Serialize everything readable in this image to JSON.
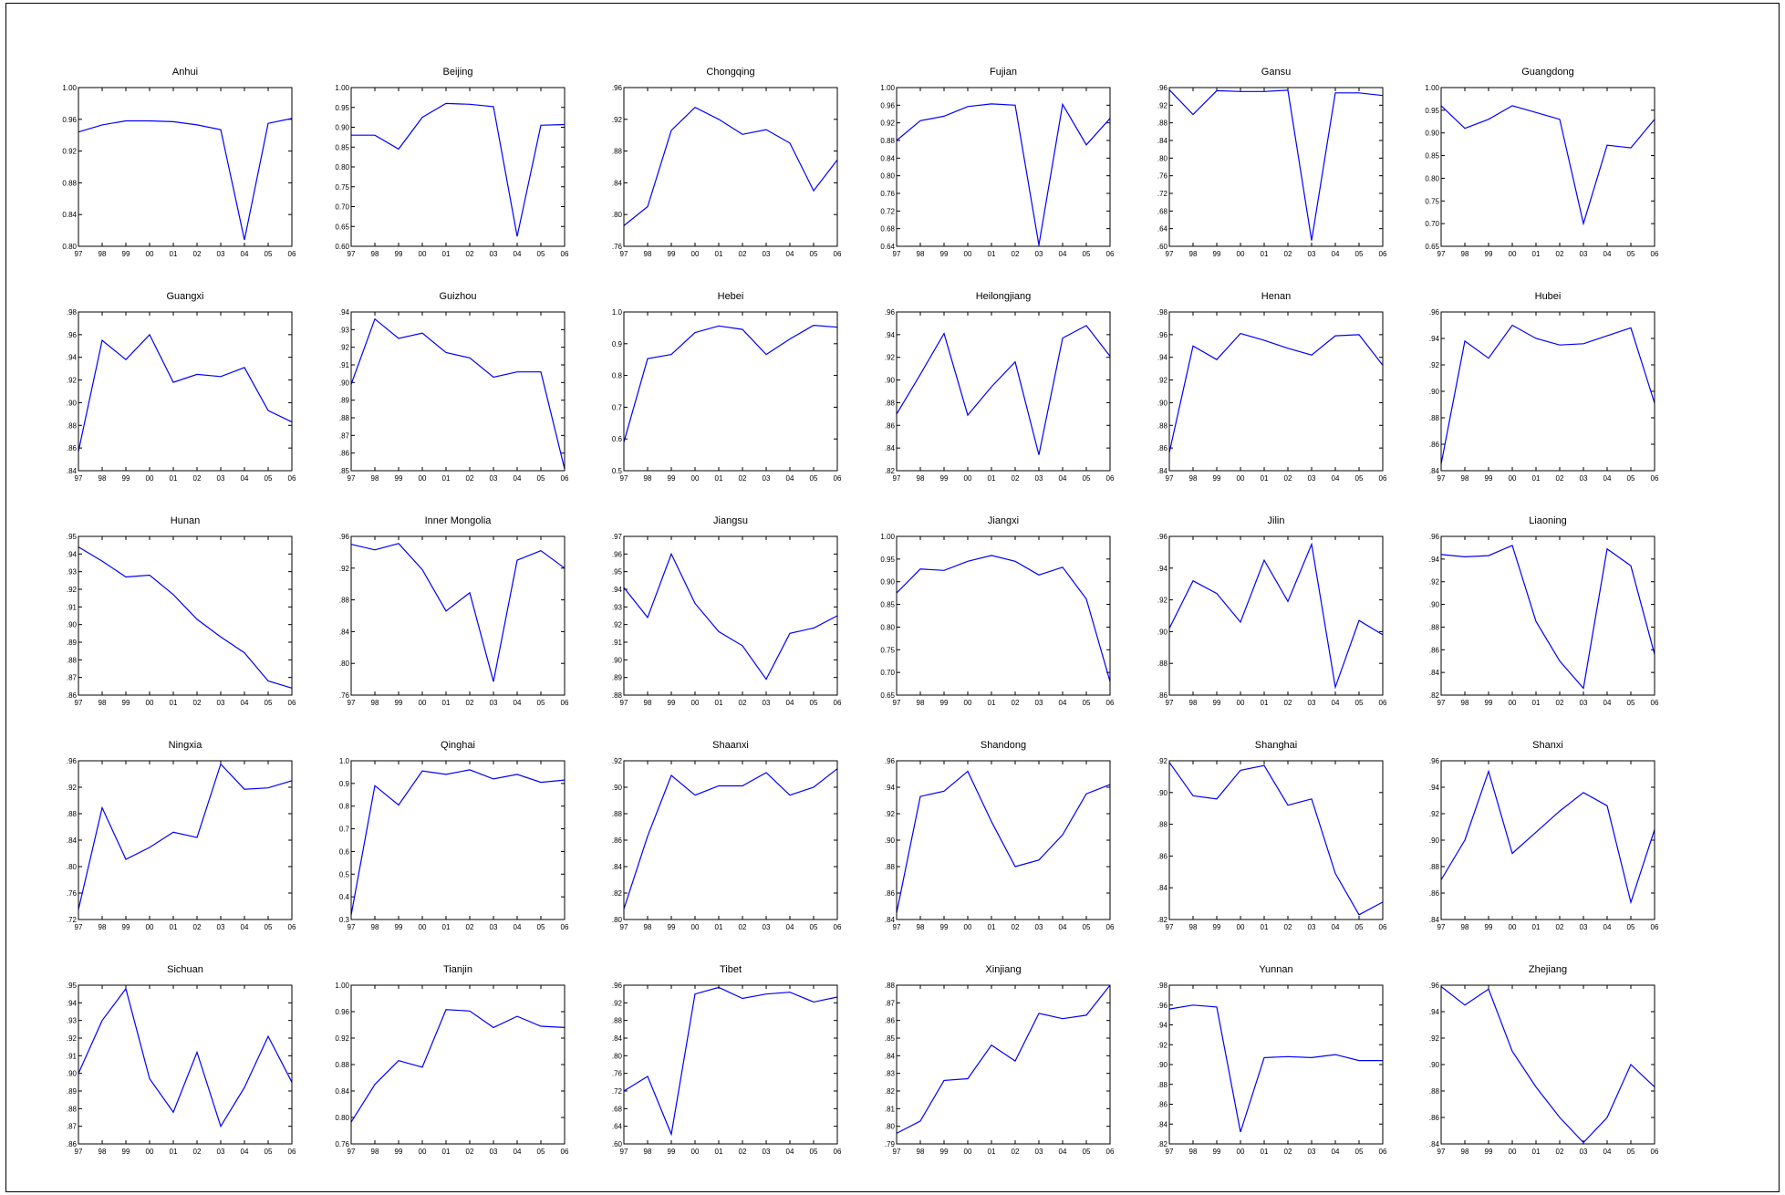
{
  "style": {
    "line_color": "#0000ff",
    "axis_color": "#000000",
    "background": "#ffffff"
  },
  "x_categories": [
    "97",
    "98",
    "99",
    "00",
    "01",
    "02",
    "03",
    "04",
    "05",
    "06"
  ],
  "chart_data": [
    {
      "type": "line",
      "title": "Anhui",
      "ylim": [
        0.8,
        1.0
      ],
      "yticks": [
        "0.80",
        "0.84",
        "0.88",
        "0.92",
        "0.96",
        "1.00"
      ],
      "values": [
        0.944,
        0.953,
        0.958,
        0.958,
        0.957,
        0.953,
        0.947,
        0.808,
        0.955,
        0.961
      ]
    },
    {
      "type": "line",
      "title": "Beijing",
      "ylim": [
        0.6,
        1.0
      ],
      "yticks": [
        "0.60",
        "0.65",
        "0.70",
        "0.75",
        "0.80",
        "0.85",
        "0.90",
        "0.95",
        "1.00"
      ],
      "values": [
        0.88,
        0.88,
        0.845,
        0.925,
        0.96,
        0.958,
        0.952,
        0.625,
        0.905,
        0.907
      ]
    },
    {
      "type": "line",
      "title": "Chongqing",
      "ylim": [
        0.76,
        0.96
      ],
      "yticks": [
        ".76",
        ".80",
        ".84",
        ".88",
        ".92",
        ".96"
      ],
      "values": [
        0.786,
        0.81,
        0.906,
        0.935,
        0.92,
        0.901,
        0.907,
        0.89,
        0.83,
        0.869
      ]
    },
    {
      "type": "line",
      "title": "Fujian",
      "ylim": [
        0.64,
        1.0
      ],
      "yticks": [
        "0.64",
        "0.68",
        "0.72",
        "0.76",
        "0.80",
        "0.84",
        "0.88",
        "0.92",
        "0.96",
        "1.00"
      ],
      "values": [
        0.88,
        0.925,
        0.935,
        0.957,
        0.963,
        0.96,
        0.643,
        0.962,
        0.87,
        0.93
      ]
    },
    {
      "type": "line",
      "title": "Gansu",
      "ylim": [
        0.6,
        0.96
      ],
      "yticks": [
        ".60",
        ".64",
        ".68",
        ".72",
        ".76",
        ".80",
        ".84",
        ".88",
        ".92",
        ".96"
      ],
      "values": [
        0.955,
        0.899,
        0.953,
        0.951,
        0.951,
        0.954,
        0.613,
        0.948,
        0.948,
        0.942
      ]
    },
    {
      "type": "line",
      "title": "Guangdong",
      "ylim": [
        0.65,
        1.0
      ],
      "yticks": [
        "0.65",
        "0.70",
        "0.75",
        "0.80",
        "0.85",
        "0.90",
        "0.95",
        "1.00"
      ],
      "values": [
        0.96,
        0.91,
        0.93,
        0.96,
        0.945,
        0.93,
        0.7,
        0.873,
        0.867,
        0.93
      ]
    },
    {
      "type": "line",
      "title": "Guangxi",
      "ylim": [
        0.84,
        0.98
      ],
      "yticks": [
        ".84",
        ".86",
        ".88",
        ".90",
        ".92",
        ".94",
        ".96",
        ".98"
      ],
      "values": [
        0.857,
        0.955,
        0.938,
        0.96,
        0.918,
        0.925,
        0.923,
        0.931,
        0.893,
        0.883
      ]
    },
    {
      "type": "line",
      "title": "Guizhou",
      "ylim": [
        0.85,
        0.94
      ],
      "yticks": [
        ".85",
        ".86",
        ".87",
        ".88",
        ".89",
        ".90",
        ".91",
        ".92",
        ".93",
        ".94"
      ],
      "values": [
        0.899,
        0.936,
        0.925,
        0.928,
        0.917,
        0.914,
        0.903,
        0.906,
        0.906,
        0.851
      ]
    },
    {
      "type": "line",
      "title": "Hebei",
      "ylim": [
        0.5,
        1.0
      ],
      "yticks": [
        "0.5",
        "0.6",
        "0.7",
        "0.8",
        "0.9",
        "1.0"
      ],
      "values": [
        0.59,
        0.853,
        0.866,
        0.935,
        0.956,
        0.945,
        0.866,
        0.915,
        0.958,
        0.952
      ]
    },
    {
      "type": "line",
      "title": "Heilongjiang",
      "ylim": [
        0.82,
        0.96
      ],
      "yticks": [
        ".82",
        ".84",
        ".86",
        ".88",
        ".90",
        ".92",
        ".94",
        ".96"
      ],
      "values": [
        0.87,
        0.905,
        0.941,
        0.869,
        0.894,
        0.916,
        0.834,
        0.937,
        0.948,
        0.921
      ]
    },
    {
      "type": "line",
      "title": "Henan",
      "ylim": [
        0.84,
        0.98
      ],
      "yticks": [
        ".84",
        ".86",
        ".88",
        ".90",
        ".92",
        ".94",
        ".96",
        ".98"
      ],
      "values": [
        0.856,
        0.95,
        0.938,
        0.961,
        0.955,
        0.948,
        0.942,
        0.959,
        0.96,
        0.933
      ]
    },
    {
      "type": "line",
      "title": "Hubei",
      "ylim": [
        0.84,
        0.96
      ],
      "yticks": [
        ".84",
        ".86",
        ".88",
        ".90",
        ".92",
        ".94",
        ".96"
      ],
      "values": [
        0.845,
        0.938,
        0.925,
        0.95,
        0.94,
        0.935,
        0.936,
        0.942,
        0.948,
        0.891
      ]
    },
    {
      "type": "line",
      "title": "Hunan",
      "ylim": [
        0.86,
        0.95
      ],
      "yticks": [
        ".86",
        ".87",
        ".88",
        ".89",
        ".90",
        ".91",
        ".92",
        ".93",
        ".94",
        ".95"
      ],
      "values": [
        0.944,
        0.936,
        0.927,
        0.928,
        0.917,
        0.903,
        0.893,
        0.884,
        0.868,
        0.864
      ]
    },
    {
      "type": "line",
      "title": "Inner Mongolia",
      "ylim": [
        0.76,
        0.96
      ],
      "yticks": [
        ".76",
        ".80",
        ".84",
        ".88",
        ".92",
        ".96"
      ],
      "values": [
        0.95,
        0.943,
        0.951,
        0.918,
        0.866,
        0.889,
        0.777,
        0.93,
        0.942,
        0.92
      ]
    },
    {
      "type": "line",
      "title": "Jiangsu",
      "ylim": [
        0.88,
        0.97
      ],
      "yticks": [
        ".88",
        ".89",
        ".90",
        ".91",
        ".92",
        ".93",
        ".94",
        ".95",
        ".96",
        ".97"
      ],
      "values": [
        0.941,
        0.924,
        0.96,
        0.932,
        0.916,
        0.908,
        0.889,
        0.915,
        0.918,
        0.925
      ]
    },
    {
      "type": "line",
      "title": "Jiangxi",
      "ylim": [
        0.65,
        1.0
      ],
      "yticks": [
        "0.65",
        "0.70",
        "0.75",
        "0.80",
        "0.85",
        "0.90",
        "0.95",
        "1.00"
      ],
      "values": [
        0.875,
        0.928,
        0.925,
        0.945,
        0.958,
        0.945,
        0.915,
        0.932,
        0.862,
        0.68
      ]
    },
    {
      "type": "line",
      "title": "Jilin",
      "ylim": [
        0.86,
        0.96
      ],
      "yticks": [
        ".86",
        ".88",
        ".90",
        ".92",
        ".94",
        ".96"
      ],
      "values": [
        0.902,
        0.932,
        0.924,
        0.906,
        0.945,
        0.919,
        0.955,
        0.865,
        0.907,
        0.898
      ]
    },
    {
      "type": "line",
      "title": "Liaoning",
      "ylim": [
        0.82,
        0.96
      ],
      "yticks": [
        ".82",
        ".84",
        ".86",
        ".88",
        ".90",
        ".92",
        ".94",
        ".96"
      ],
      "values": [
        0.944,
        0.942,
        0.943,
        0.952,
        0.885,
        0.85,
        0.826,
        0.949,
        0.934,
        0.856
      ]
    },
    {
      "type": "line",
      "title": "Ningxia",
      "ylim": [
        0.72,
        0.96
      ],
      "yticks": [
        ".72",
        ".76",
        ".80",
        ".84",
        ".88",
        ".92",
        ".96"
      ],
      "values": [
        0.735,
        0.889,
        0.811,
        0.829,
        0.852,
        0.844,
        0.955,
        0.917,
        0.919,
        0.93
      ]
    },
    {
      "type": "line",
      "title": "Qinghai",
      "ylim": [
        0.3,
        1.0
      ],
      "yticks": [
        "0.3",
        "0.4",
        "0.5",
        "0.6",
        "0.7",
        "0.8",
        "0.9",
        "1.0"
      ],
      "values": [
        0.32,
        0.89,
        0.805,
        0.955,
        0.94,
        0.96,
        0.92,
        0.94,
        0.905,
        0.915
      ]
    },
    {
      "type": "line",
      "title": "Shaanxi",
      "ylim": [
        0.8,
        0.92
      ],
      "yticks": [
        ".80",
        ".82",
        ".84",
        ".86",
        ".88",
        ".90",
        ".92"
      ],
      "values": [
        0.808,
        0.863,
        0.909,
        0.894,
        0.901,
        0.901,
        0.911,
        0.894,
        0.9,
        0.914
      ]
    },
    {
      "type": "line",
      "title": "Shandong",
      "ylim": [
        0.84,
        0.96
      ],
      "yticks": [
        ".84",
        ".86",
        ".88",
        ".90",
        ".92",
        ".94",
        ".96"
      ],
      "values": [
        0.845,
        0.933,
        0.937,
        0.952,
        0.914,
        0.88,
        0.885,
        0.904,
        0.935,
        0.942
      ]
    },
    {
      "type": "line",
      "title": "Shanghai",
      "ylim": [
        0.82,
        0.92
      ],
      "yticks": [
        ".82",
        ".84",
        ".86",
        ".88",
        ".90",
        ".92"
      ],
      "values": [
        0.919,
        0.898,
        0.896,
        0.914,
        0.917,
        0.892,
        0.896,
        0.849,
        0.823,
        0.831
      ]
    },
    {
      "type": "line",
      "title": "Shanxi",
      "ylim": [
        0.84,
        0.96
      ],
      "yticks": [
        ".84",
        ".86",
        ".88",
        ".90",
        ".92",
        ".94",
        ".96"
      ],
      "values": [
        0.87,
        0.9,
        0.952,
        0.89,
        0.906,
        0.922,
        0.936,
        0.926,
        0.853,
        0.908
      ]
    },
    {
      "type": "line",
      "title": "Sichuan",
      "ylim": [
        0.86,
        0.95
      ],
      "yticks": [
        ".86",
        ".87",
        ".88",
        ".89",
        ".90",
        ".91",
        ".92",
        ".93",
        ".94",
        ".95"
      ],
      "values": [
        0.9,
        0.93,
        0.948,
        0.897,
        0.878,
        0.912,
        0.87,
        0.892,
        0.921,
        0.895
      ]
    },
    {
      "type": "line",
      "title": "Tianjin",
      "ylim": [
        0.76,
        1.0
      ],
      "yticks": [
        "0.76",
        "0.80",
        "0.84",
        "0.88",
        "0.92",
        "0.96",
        "1.00"
      ],
      "values": [
        0.793,
        0.85,
        0.886,
        0.876,
        0.963,
        0.961,
        0.936,
        0.953,
        0.938,
        0.936
      ]
    },
    {
      "type": "line",
      "title": "Tibet",
      "ylim": [
        0.6,
        0.96
      ],
      "yticks": [
        ".60",
        ".64",
        ".68",
        ".72",
        ".76",
        ".80",
        ".84",
        ".88",
        ".92",
        ".96"
      ],
      "values": [
        0.72,
        0.753,
        0.622,
        0.94,
        0.955,
        0.93,
        0.94,
        0.944,
        0.922,
        0.933
      ]
    },
    {
      "type": "line",
      "title": "Xinjiang",
      "ylim": [
        0.79,
        0.88
      ],
      "yticks": [
        ".79",
        ".80",
        ".81",
        ".82",
        ".83",
        ".84",
        ".85",
        ".86",
        ".87",
        ".88"
      ],
      "values": [
        0.796,
        0.803,
        0.826,
        0.827,
        0.846,
        0.837,
        0.864,
        0.861,
        0.863,
        0.88
      ]
    },
    {
      "type": "line",
      "title": "Yunnan",
      "ylim": [
        0.82,
        0.98
      ],
      "yticks": [
        ".82",
        ".84",
        ".86",
        ".88",
        ".90",
        ".92",
        ".94",
        ".96",
        ".98"
      ],
      "values": [
        0.956,
        0.96,
        0.958,
        0.832,
        0.907,
        0.908,
        0.907,
        0.91,
        0.904,
        0.904
      ]
    },
    {
      "type": "line",
      "title": "Zhejiang",
      "ylim": [
        0.84,
        0.96
      ],
      "yticks": [
        ".84",
        ".86",
        ".88",
        ".90",
        ".92",
        ".94",
        ".96"
      ],
      "values": [
        0.959,
        0.945,
        0.957,
        0.91,
        0.883,
        0.86,
        0.841,
        0.86,
        0.9,
        0.883
      ]
    }
  ]
}
